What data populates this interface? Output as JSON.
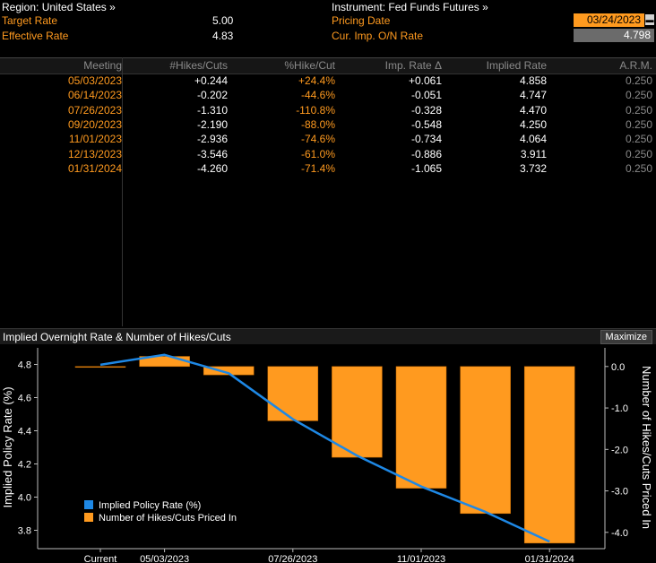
{
  "header": {
    "region_label": "Region: United States »",
    "instrument_label": "Instrument: Fed Funds Futures »",
    "target_rate_label": "Target Rate",
    "target_rate_value": "5.00",
    "effective_rate_label": "Effective Rate",
    "effective_rate_value": "4.83",
    "pricing_date_label": "Pricing Date",
    "pricing_date_value": "03/24/2023",
    "cur_imp_label": "Cur. Imp. O/N Rate",
    "cur_imp_value": "4.798"
  },
  "table": {
    "columns": [
      "Meeting",
      "#Hikes/Cuts",
      "%Hike/Cut",
      "Imp. Rate Δ",
      "Implied Rate",
      "A.R.M."
    ],
    "rows": [
      [
        "05/03/2023",
        "+0.244",
        "+24.4%",
        "+0.061",
        "4.858",
        "0.250"
      ],
      [
        "06/14/2023",
        "-0.202",
        "-44.6%",
        "-0.051",
        "4.747",
        "0.250"
      ],
      [
        "07/26/2023",
        "-1.310",
        "-110.8%",
        "-0.328",
        "4.470",
        "0.250"
      ],
      [
        "09/20/2023",
        "-2.190",
        "-88.0%",
        "-0.548",
        "4.250",
        "0.250"
      ],
      [
        "11/01/2023",
        "-2.936",
        "-74.6%",
        "-0.734",
        "4.064",
        "0.250"
      ],
      [
        "12/13/2023",
        "-3.546",
        "-61.0%",
        "-0.886",
        "3.911",
        "0.250"
      ],
      [
        "01/31/2024",
        "-4.260",
        "-71.4%",
        "-1.065",
        "3.732",
        "0.250"
      ]
    ]
  },
  "chart_panel": {
    "title": "Implied Overnight Rate & Number of Hikes/Cuts",
    "maximize_label": "Maximize"
  },
  "colors": {
    "orange": "#ff9a1f",
    "blue": "#1e88e5",
    "background": "#000000"
  },
  "chart_data": {
    "type": "bar",
    "categories": [
      "Current",
      "05/03/2023",
      "06/14/2023",
      "07/26/2023",
      "09/20/2023",
      "11/01/2023",
      "12/13/2023",
      "01/31/2024"
    ],
    "x_tick_labels": [
      "Current",
      "05/03/2023",
      "07/26/2023",
      "11/01/2023",
      "01/31/2024"
    ],
    "series": [
      {
        "name": "Implied Policy Rate (%)",
        "type": "line",
        "axis": "left",
        "color": "#1e88e5",
        "values": [
          4.798,
          4.858,
          4.747,
          4.47,
          4.25,
          4.064,
          3.911,
          3.732
        ]
      },
      {
        "name": "Number of Hikes/Cuts Priced In",
        "type": "bar",
        "axis": "right",
        "color": "#ff9a1f",
        "values": [
          0.0,
          0.244,
          -0.202,
          -1.31,
          -2.19,
          -2.936,
          -3.546,
          -4.26
        ]
      }
    ],
    "ylabel": "Implied Policy Rate (%)",
    "y2label": "Number of Hikes/Cuts Priced In",
    "ylim": [
      3.7,
      4.9
    ],
    "y_ticks": [
      "4.8",
      "4.6",
      "4.4",
      "4.2",
      "4.0",
      "3.8"
    ],
    "y2lim": [
      -4.35,
      0.45
    ],
    "y2_ticks": [
      "0.0",
      "-1.0",
      "-2.0",
      "-3.0",
      "-4.0"
    ],
    "legend_position": "bottom-left",
    "grid": false
  }
}
